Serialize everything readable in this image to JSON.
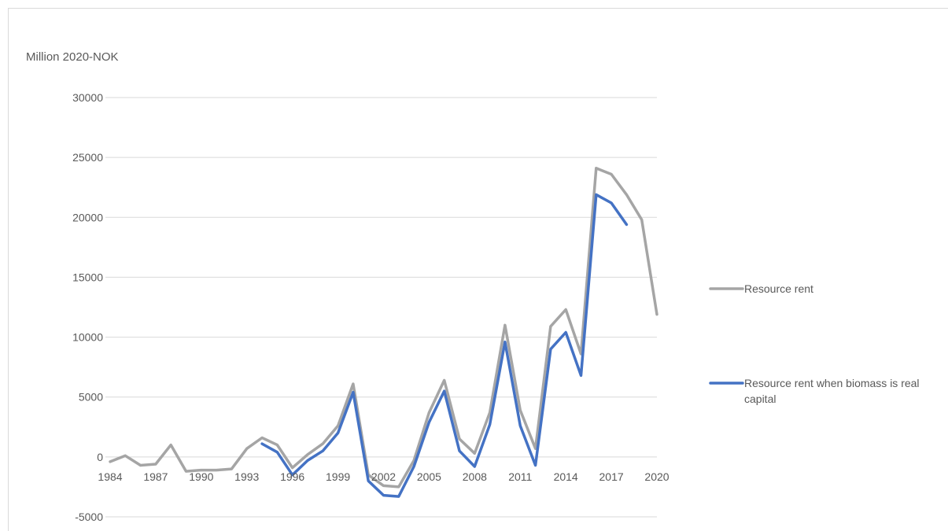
{
  "chart_data": {
    "type": "line",
    "title": "",
    "ylabel": "Million 2020-NOK",
    "xlabel": "",
    "ylim": [
      -5000,
      30000
    ],
    "y_ticks": [
      -5000,
      0,
      5000,
      10000,
      15000,
      20000,
      25000,
      30000
    ],
    "x_tick_labels": [
      "1984",
      "1987",
      "1990",
      "1993",
      "1996",
      "1999",
      "2002",
      "2005",
      "2008",
      "2011",
      "2014",
      "2017",
      "2020"
    ],
    "x": [
      1984,
      1985,
      1986,
      1987,
      1988,
      1989,
      1990,
      1991,
      1992,
      1993,
      1994,
      1995,
      1996,
      1997,
      1998,
      1999,
      2000,
      2001,
      2002,
      2003,
      2004,
      2005,
      2006,
      2007,
      2008,
      2009,
      2010,
      2011,
      2012,
      2013,
      2014,
      2015,
      2016,
      2017,
      2018,
      2019,
      2020
    ],
    "grid": true,
    "legend_position": "right",
    "series": [
      {
        "name": "Resource rent",
        "color": "#a5a5a5",
        "values": [
          -400,
          100,
          -700,
          -600,
          1000,
          -1200,
          -1100,
          -1100,
          -1000,
          700,
          1600,
          1000,
          -900,
          200,
          1100,
          2600,
          6100,
          -1500,
          -2400,
          -2500,
          -300,
          3700,
          6400,
          1500,
          300,
          3700,
          11000,
          3900,
          700,
          10900,
          12300,
          8600,
          24100,
          23600,
          21900,
          19800,
          11900
        ]
      },
      {
        "name": "Resource rent when biomass is real capital",
        "color": "#4472c4",
        "values": [
          null,
          null,
          null,
          null,
          null,
          null,
          null,
          null,
          null,
          null,
          1100,
          400,
          -1500,
          -300,
          500,
          2000,
          5400,
          -2000,
          -3200,
          -3300,
          -800,
          2900,
          5500,
          500,
          -800,
          2700,
          9600,
          2600,
          -700,
          9000,
          10400,
          6800,
          21900,
          21200,
          19400,
          null,
          null
        ]
      }
    ]
  }
}
